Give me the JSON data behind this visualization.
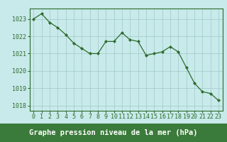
{
  "x": [
    0,
    1,
    2,
    3,
    4,
    5,
    6,
    7,
    8,
    9,
    10,
    11,
    12,
    13,
    14,
    15,
    16,
    17,
    18,
    19,
    20,
    21,
    22,
    23
  ],
  "y": [
    1023.0,
    1023.3,
    1022.8,
    1022.5,
    1022.1,
    1021.6,
    1021.3,
    1021.0,
    1021.0,
    1021.7,
    1021.7,
    1022.2,
    1021.8,
    1021.7,
    1020.9,
    1021.0,
    1021.1,
    1021.4,
    1021.1,
    1020.2,
    1019.3,
    1018.8,
    1018.7,
    1018.3
  ],
  "line_color": "#2d6a2d",
  "marker_color": "#2d6a2d",
  "bg_color": "#c8eaea",
  "grid_color": "#a0c8c8",
  "axis_color": "#2d6a2d",
  "title": "Graphe pression niveau de la mer (hPa)",
  "title_text_color": "#ffffff",
  "title_bg": "#3a7a3a",
  "ylim": [
    1017.7,
    1023.6
  ],
  "yticks": [
    1018,
    1019,
    1020,
    1021,
    1022,
    1023
  ],
  "xticks": [
    0,
    1,
    2,
    3,
    4,
    5,
    6,
    7,
    8,
    9,
    10,
    11,
    12,
    13,
    14,
    15,
    16,
    17,
    18,
    19,
    20,
    21,
    22,
    23
  ],
  "tick_fontsize": 6,
  "title_fontsize": 7.5
}
